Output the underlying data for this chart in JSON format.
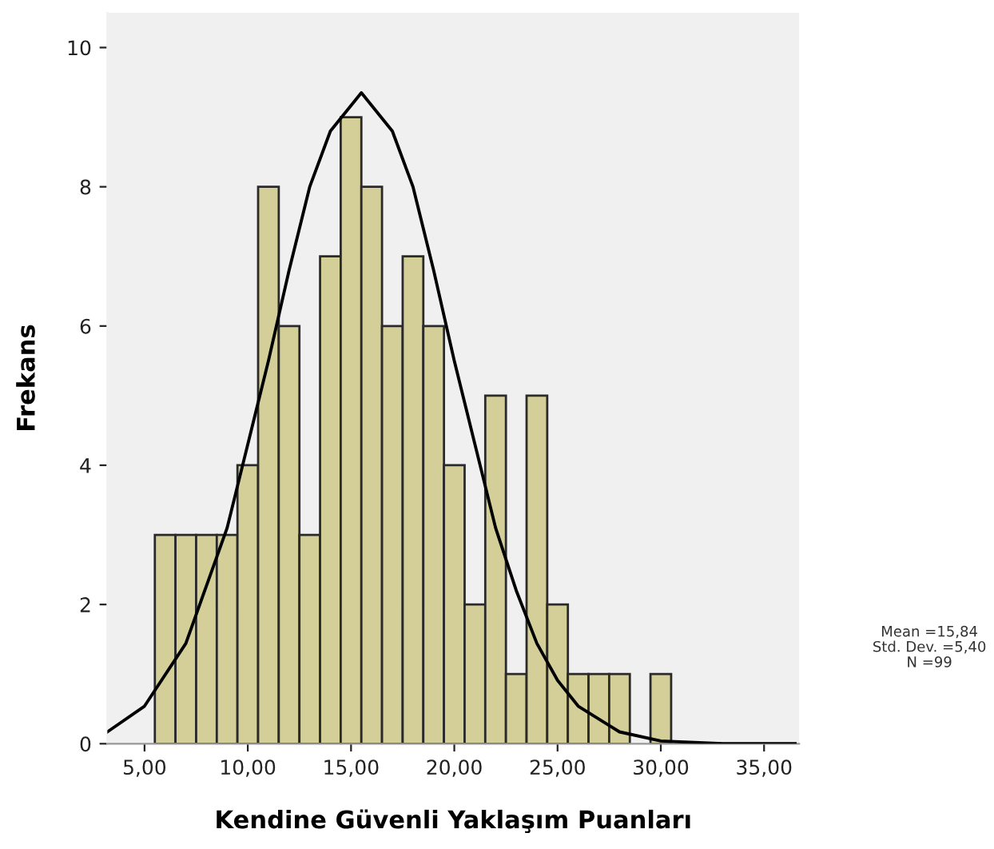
{
  "chart_data": {
    "type": "histogram",
    "xlabel": "Kendine Güvenli Yaklaşım Puanları",
    "ylabel": "Frekans",
    "bins": [
      5.5,
      6.5,
      7.5,
      8.5,
      9.5,
      10.5,
      11.5,
      12.5,
      13.5,
      14.5,
      15.5,
      16.5,
      17.5,
      18.5,
      19.5,
      20.5,
      21.5,
      22.5,
      23.5,
      24.5,
      25.5,
      26.5,
      27.5,
      28.5,
      29.5,
      30.5
    ],
    "values": [
      3,
      3,
      3,
      3,
      4,
      8,
      6,
      3,
      7,
      9,
      8,
      6,
      7,
      6,
      4,
      2,
      5,
      1,
      5,
      2,
      1,
      1,
      1,
      0,
      1
    ],
    "color": "#d4cf98",
    "series": [
      {
        "type": "line",
        "color": "#000000",
        "x": [
          3.2,
          5,
          7,
          9,
          10,
          11,
          12,
          13,
          14,
          15.5,
          17,
          18,
          19,
          20,
          21,
          22,
          23,
          24,
          25,
          26,
          28,
          30,
          33,
          36.5
        ],
        "values": [
          0.17,
          0.54,
          1.44,
          3.1,
          4.3,
          5.5,
          6.8,
          8.0,
          8.8,
          9.35,
          8.8,
          8.0,
          6.8,
          5.5,
          4.3,
          3.1,
          2.2,
          1.44,
          0.91,
          0.54,
          0.17,
          0.04,
          0,
          0
        ]
      }
    ],
    "xlim": [
      3.2,
      36.7
    ],
    "ylim": [
      0,
      10.5
    ],
    "xticks": [
      {
        "value": 5,
        "label": "5,00"
      },
      {
        "value": 10,
        "label": "10,00"
      },
      {
        "value": 15,
        "label": "15,00"
      },
      {
        "value": 20,
        "label": "20,00"
      },
      {
        "value": 25,
        "label": "25,00"
      },
      {
        "value": 30,
        "label": "30,00"
      },
      {
        "value": 35,
        "label": "35,00"
      }
    ],
    "yticks": [
      0,
      2,
      4,
      6,
      8,
      10
    ],
    "grid": false,
    "legend": false,
    "annotations": [
      "Mean =15,84",
      "Std. Dev. =5,40",
      "N =99"
    ]
  }
}
